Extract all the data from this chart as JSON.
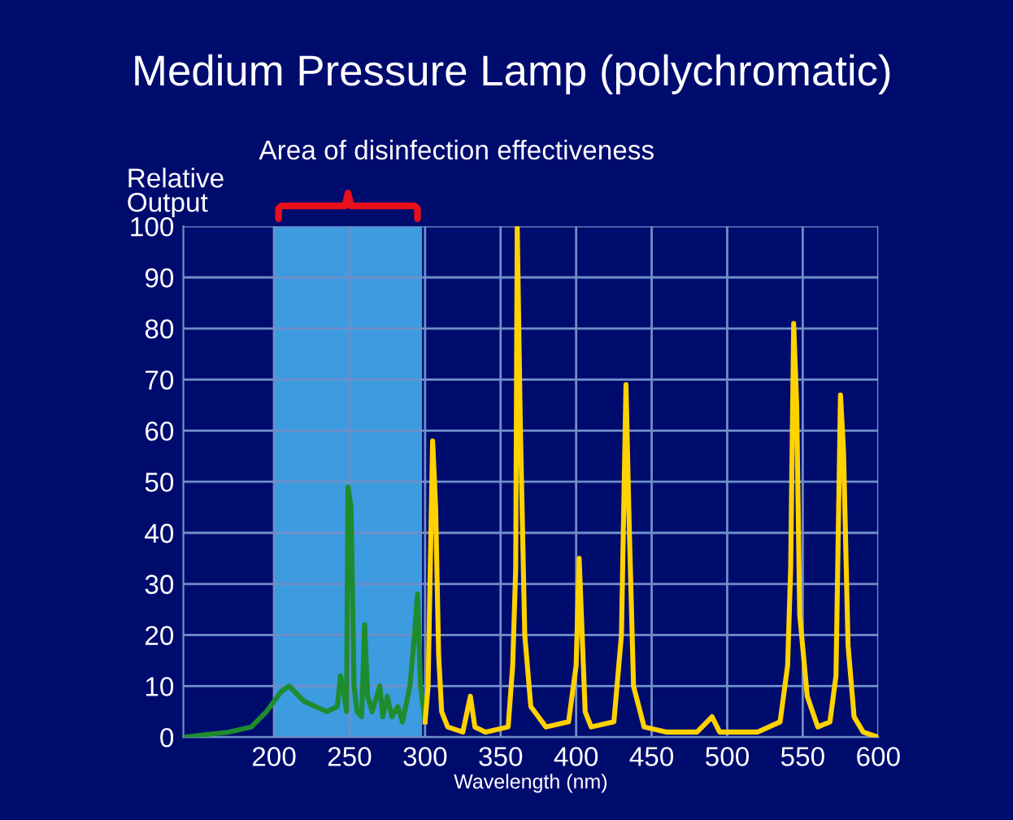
{
  "chart_data": {
    "type": "line",
    "title": "Medium Pressure Lamp (polychromatic)",
    "xlabel": "Wavelength (nm)",
    "ylabel": "Relative\nOutput",
    "xlim": [
      140,
      600
    ],
    "xticks": [
      200,
      250,
      300,
      350,
      400,
      450,
      500,
      550,
      600
    ],
    "ylim": [
      0,
      100
    ],
    "yticks": [
      0,
      10,
      20,
      30,
      40,
      50,
      60,
      70,
      80,
      90,
      100
    ],
    "grid": true,
    "marker": "none",
    "line_style": "solid",
    "bands": [
      {
        "axis": "x",
        "from": 200,
        "to": 298,
        "label": "Area of disinfection effectiveness",
        "color": "#3d9be0"
      }
    ],
    "series": [
      {
        "color": "#1e8c2e",
        "x": [
          140,
          170,
          185,
          195,
          205,
          210,
          220,
          235,
          242,
          244,
          246,
          248,
          249,
          251,
          253,
          255,
          258,
          260,
          262,
          265,
          270,
          272,
          275,
          278,
          282,
          285,
          290,
          293,
          295,
          297,
          300
        ],
        "values": [
          0,
          1,
          2,
          5,
          9,
          10,
          7,
          5,
          6,
          12,
          9,
          5,
          49,
          45,
          10,
          5,
          4,
          22,
          8,
          5,
          10,
          4,
          8,
          4,
          6,
          3,
          10,
          20,
          28,
          10,
          3
        ]
      },
      {
        "color": "#ffd200",
        "x": [
          300,
          302,
          305,
          307,
          309,
          311,
          315,
          325,
          330,
          333,
          340,
          355,
          358,
          360,
          361,
          363,
          366,
          370,
          380,
          395,
          400,
          402,
          404,
          406,
          410,
          425,
          430,
          433,
          435,
          438,
          445,
          460,
          480,
          490,
          495,
          520,
          535,
          540,
          542,
          544,
          546,
          548,
          553,
          560,
          568,
          572,
          575,
          577,
          580,
          584,
          590,
          600
        ],
        "values": [
          3,
          10,
          58,
          45,
          16,
          5,
          2,
          1,
          8,
          2,
          1,
          2,
          14,
          33,
          100,
          62,
          20,
          6,
          2,
          3,
          14,
          35,
          20,
          5,
          2,
          3,
          20,
          69,
          43,
          10,
          2,
          1,
          1,
          4,
          1,
          1,
          3,
          14,
          33,
          81,
          65,
          24,
          8,
          2,
          3,
          12,
          67,
          56,
          18,
          4,
          1,
          0
        ]
      }
    ]
  }
}
